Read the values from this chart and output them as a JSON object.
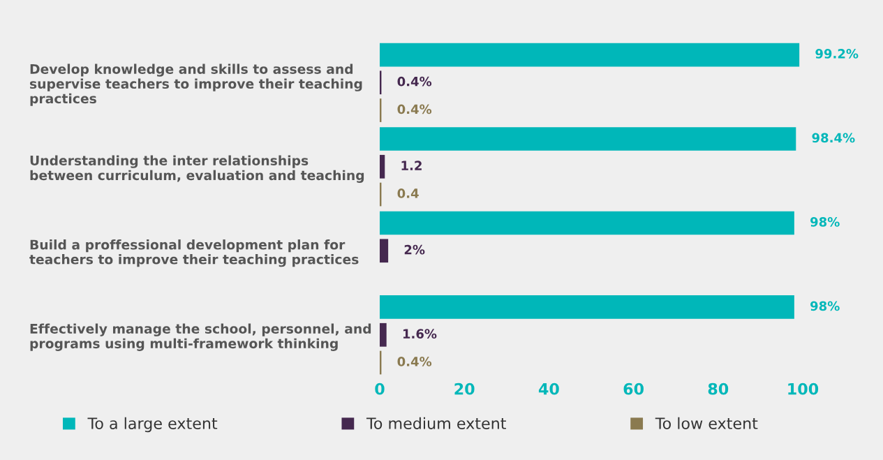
{
  "chart_data": {
    "type": "bar",
    "orientation": "horizontal",
    "categories": [
      "Develop knowledge and skills to assess and\nsupervise teachers to improve their teaching\npractices",
      "Understanding the inter relationships\nbetween curriculum, evaluation and teaching",
      "Build a proffessional development plan for\nteachers to improve their teaching practices",
      "Effectively manage the school, personnel, and\nprograms using multi-framework thinking"
    ],
    "series": [
      {
        "name": "To a large extent",
        "color": "#00b7b9",
        "values": [
          99.2,
          98.4,
          98,
          98
        ],
        "value_labels": [
          "99.2%",
          "98.4%",
          "98%",
          "98%"
        ]
      },
      {
        "name": "To medium extent",
        "color": "#45284f",
        "values": [
          0.4,
          1.2,
          2,
          1.6
        ],
        "value_labels": [
          "0.4%",
          "1.2",
          "2%",
          "1.6%"
        ]
      },
      {
        "name": "To low extent",
        "color": "#8a7a50",
        "values": [
          0.4,
          0.4,
          null,
          0.4
        ],
        "value_labels": [
          "0.4%",
          "0.4",
          null,
          "0.4%"
        ]
      }
    ],
    "xlim": [
      0,
      100
    ],
    "xticks": [
      0,
      20,
      40,
      60,
      80,
      100
    ],
    "grid": false,
    "legend": "bottom"
  }
}
